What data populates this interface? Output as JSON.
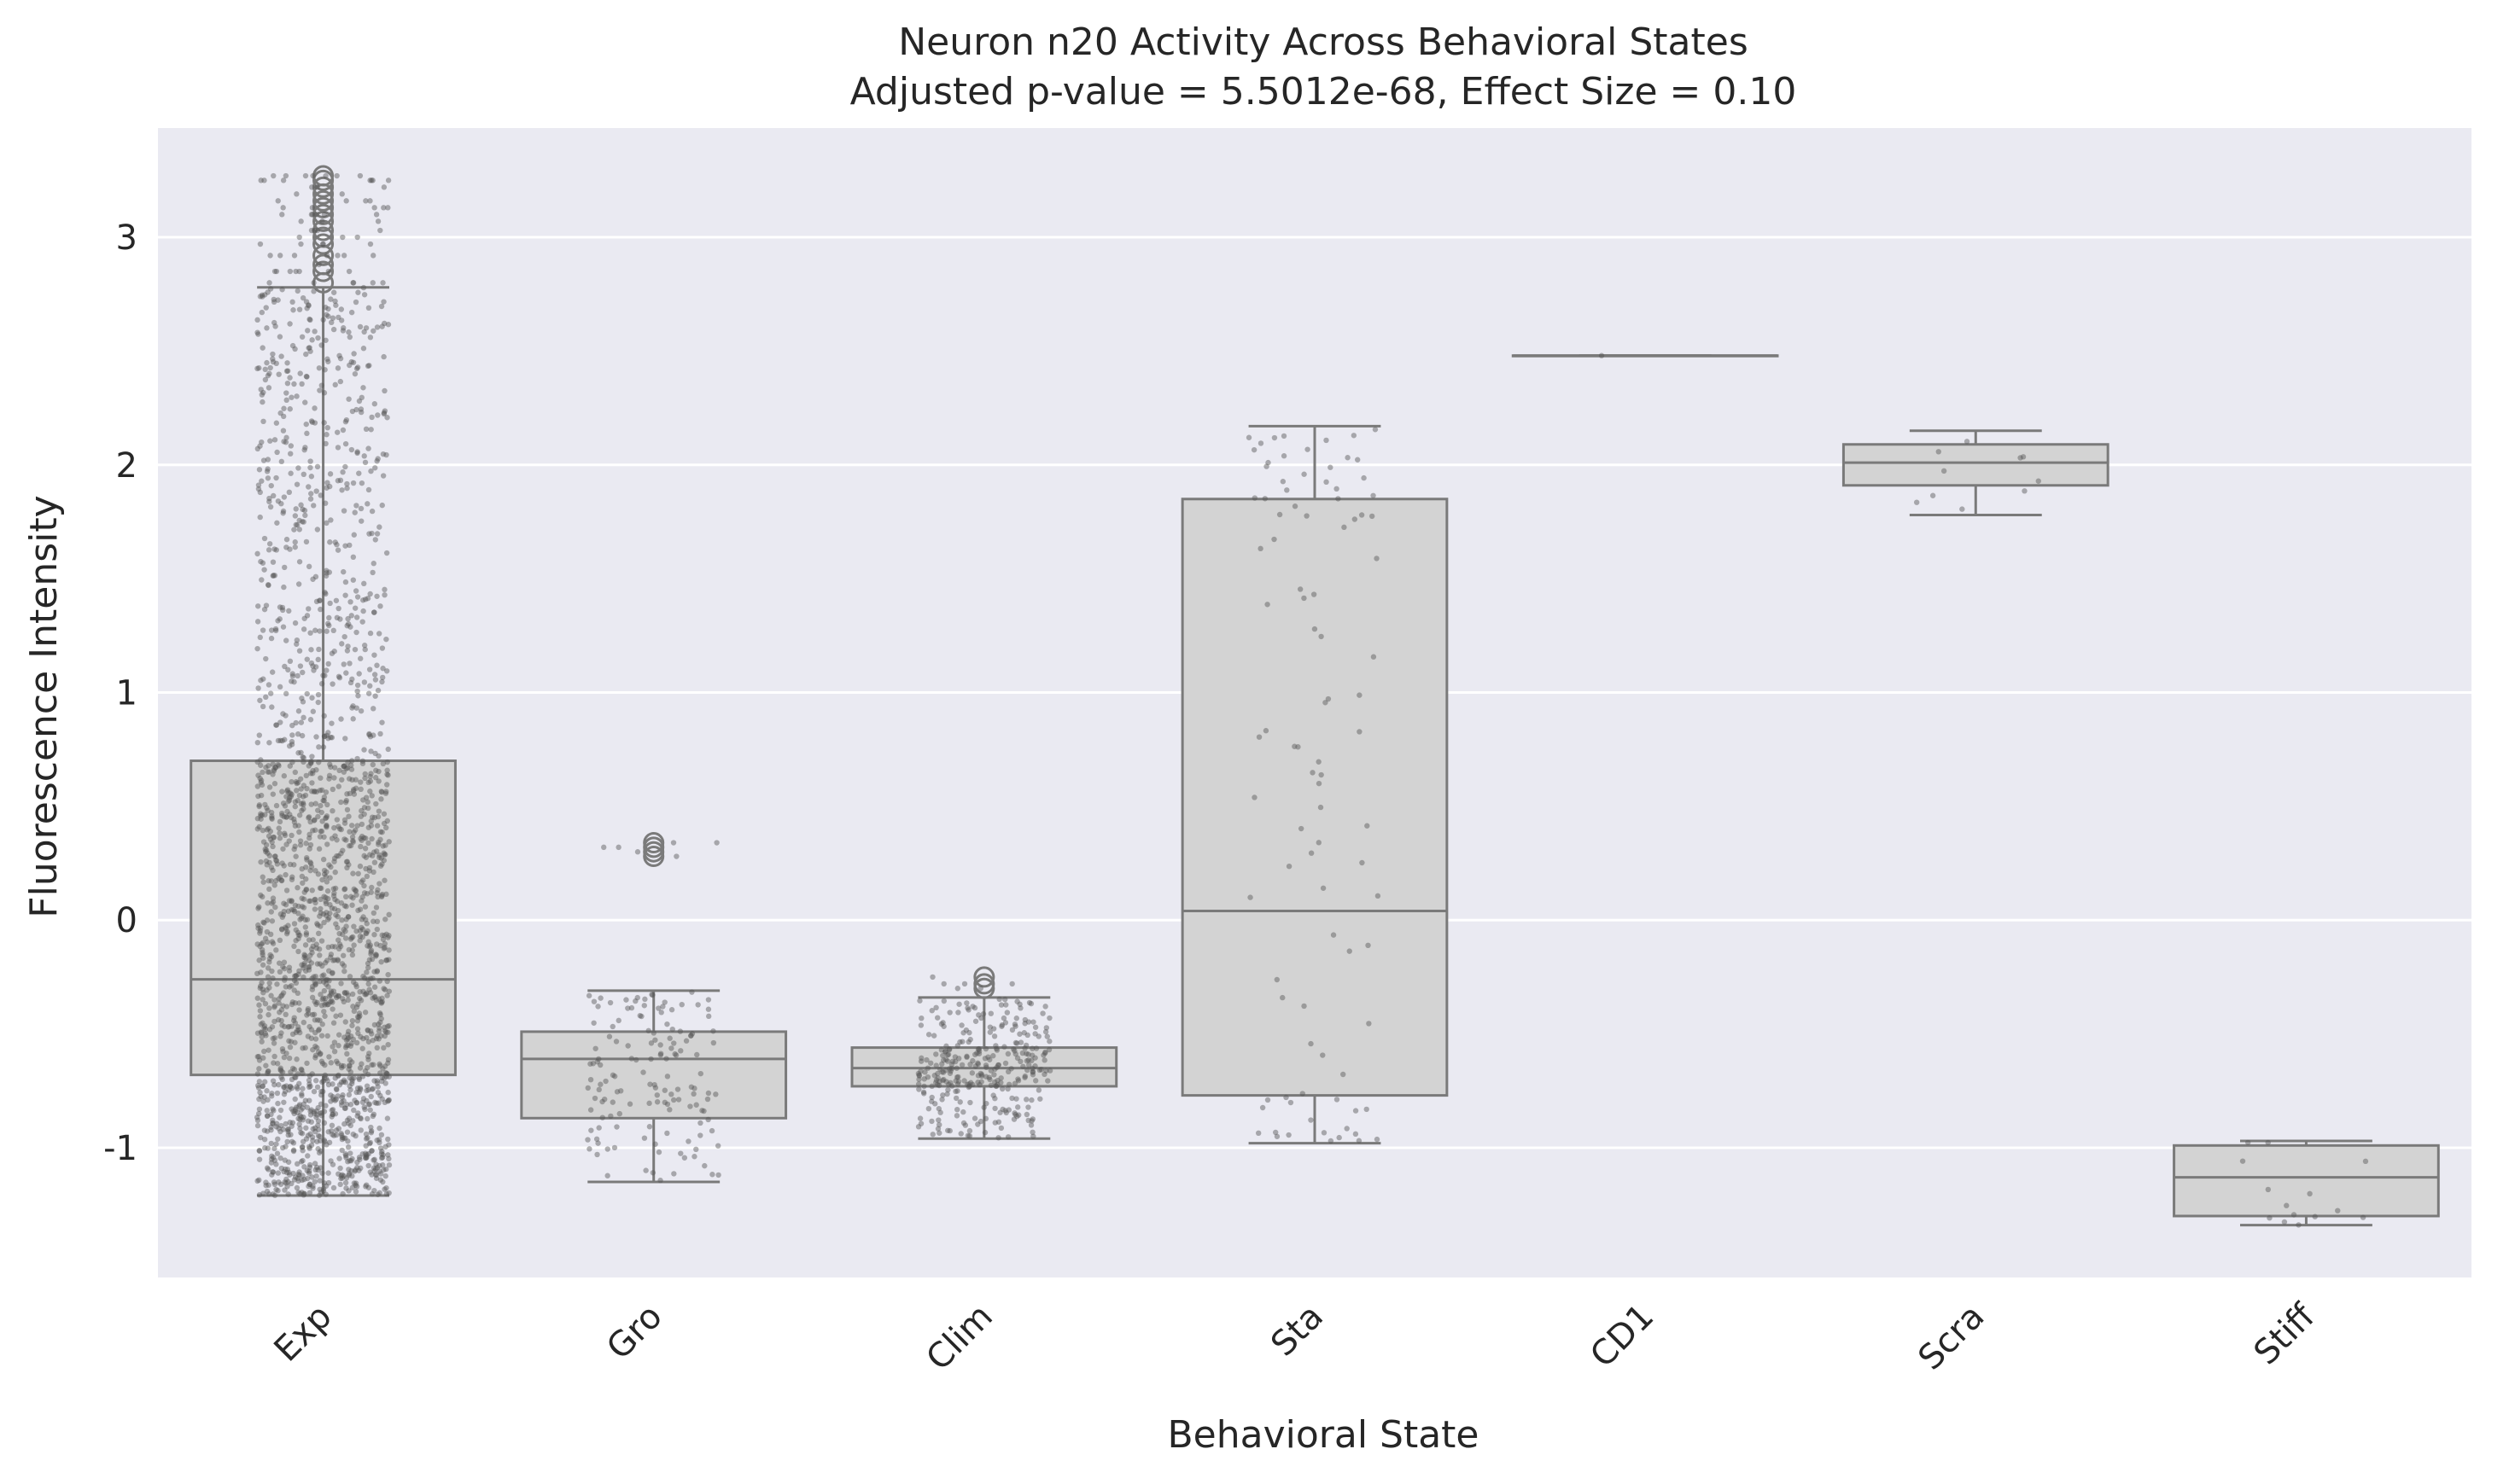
{
  "chart_data": {
    "type": "box",
    "title": "Neuron n20 Activity Across Behavioral States",
    "subtitle": "Adjusted p-value = 5.5012e-68, Effect Size = 0.10",
    "xlabel": "Behavioral State",
    "ylabel": "Fluorescence Intensity",
    "ylim": [
      -1.57,
      3.48
    ],
    "yticks": [
      3,
      2,
      1,
      0,
      -1
    ],
    "ytick_labels": [
      "3",
      "2",
      "1",
      "0",
      "-1"
    ],
    "grid": true,
    "categories": [
      "Exp",
      "Gro",
      "Clim",
      "Sta",
      "CD1",
      "Scra",
      "Stiff"
    ],
    "boxes": [
      {
        "label": "Exp",
        "whisker_low": -1.21,
        "q1": -0.68,
        "median": -0.26,
        "q3": 0.7,
        "whisker_high": 2.78,
        "n_points": 2200,
        "outliers": [
          2.8,
          2.85,
          2.88,
          2.92,
          2.97,
          3.0,
          3.03,
          3.07,
          3.1,
          3.13,
          3.16,
          3.19,
          3.22,
          3.25,
          3.27
        ]
      },
      {
        "label": "Gro",
        "whisker_low": -1.15,
        "q1": -0.87,
        "median": -0.61,
        "q3": -0.49,
        "whisker_high": -0.31,
        "n_points": 150,
        "outliers": [
          0.28,
          0.3,
          0.32,
          0.34
        ]
      },
      {
        "label": "Clim",
        "whisker_low": -0.96,
        "q1": -0.73,
        "median": -0.65,
        "q3": -0.56,
        "whisker_high": -0.34,
        "n_points": 330,
        "outliers": [
          -0.3,
          -0.28,
          -0.25
        ]
      },
      {
        "label": "Sta",
        "whisker_low": -0.98,
        "q1": -0.77,
        "median": 0.04,
        "q3": 1.85,
        "whisker_high": 2.17,
        "n_points": 95,
        "outliers": []
      },
      {
        "label": "CD1",
        "whisker_low": 2.48,
        "q1": 2.48,
        "median": 2.48,
        "q3": 2.48,
        "whisker_high": 2.48,
        "n_points": 1,
        "outliers": []
      },
      {
        "label": "Scra",
        "whisker_low": 1.78,
        "q1": 1.91,
        "median": 2.01,
        "q3": 2.09,
        "whisker_high": 2.15,
        "n_points": 10,
        "outliers": []
      },
      {
        "label": "Stiff",
        "whisker_low": -1.34,
        "q1": -1.3,
        "median": -1.13,
        "q3": -0.99,
        "whisker_high": -0.97,
        "n_points": 14,
        "outliers": []
      }
    ],
    "colors": {
      "plot_background": "#eaeaf2",
      "grid": "#ffffff",
      "box_fill": "#d3d3d3",
      "box_edge": "#7a7a7a",
      "points": "#555555",
      "text": "#262626"
    }
  }
}
